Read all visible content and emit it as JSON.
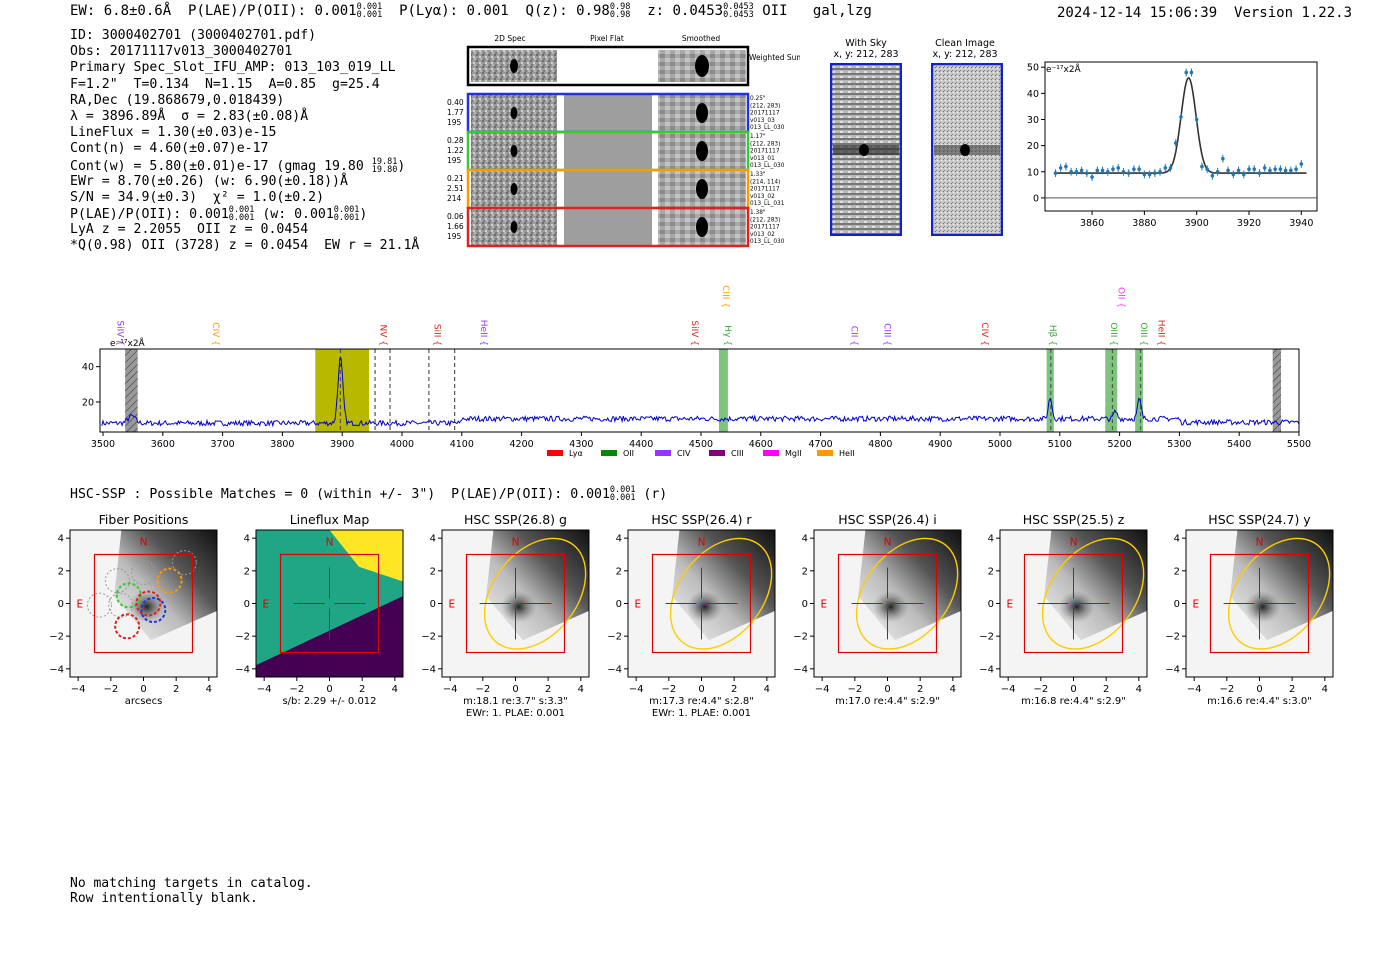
{
  "header": {
    "ew": "EW: 6.8±0.6Å",
    "plae_label": "P(LAE)/P(OII):",
    "plae_val": "0.001",
    "plae_hi": "0.001",
    "plae_lo": "0.001",
    "plya_label": "P(Lyα):",
    "plya_val": "0.001",
    "qz_label": "Q(z):",
    "qz_val": "0.98",
    "qz_hi": "0.98",
    "qz_lo": "0.98",
    "z_label": "z:",
    "z_val": "0.0453",
    "z_hi": "0.0453",
    "z_lo": "0.0453",
    "z_line": "OII",
    "flags": "gal,lzg",
    "timestamp": "2024-12-14 15:06:39",
    "version": "Version 1.22.3"
  },
  "info": {
    "id": "ID: 3000402701 (3000402701.pdf)",
    "obs": "Obs: 20171117v013_3000402701",
    "slot": "Primary Spec_Slot_IFU_AMP: 013_103_019_LL",
    "fit": "F=1.2\"  T=0.134  N=1.15  A=0.85  g=25.4",
    "radec": "RA,Dec (19.868679,0.018439)",
    "lambda": "λ = 3896.89Å  σ = 2.83(±0.08)Å",
    "lineflux": "LineFlux = 1.30(±0.03)e-15",
    "contn": "Cont(n) = 4.60(±0.07)e-17",
    "contw_a": "Cont(w) = 5.80(±0.01)e-17 (gmag 19.80",
    "contw_hi": "19.81",
    "contw_lo": "19.80",
    "contw_b": ")",
    "ewr": "EWr = 8.70(±0.26) (w: 6.90(±0.18))Å",
    "sn": "S/N = 34.9(±0.3)  χ² = 1.0(±0.2)",
    "plae_a": "P(LAE)/P(OII): 0.001",
    "plae_hi": "0.001",
    "plae_lo": "0.001",
    "plae_b": " (w: 0.001",
    "plae_w_hi": "0.001",
    "plae_w_lo": "0.001",
    "plae_c": ")",
    "lya": "LyA z = 2.2055  OII z = 0.0454",
    "q": "*Q(0.98) OII (3728) z = 0.0454  EW r = 21.1Å"
  },
  "cutouts": {
    "col_headers": [
      "2D Spec",
      "Pixel Flat",
      "Smoothed"
    ],
    "weighted_label": "Weighted Sum",
    "rows": [
      {
        "left": [
          "0.40",
          "1.77",
          "195"
        ],
        "right": [
          "0.25\"",
          "(212, 283)",
          "20171117",
          "v013_03",
          "013_LL_030"
        ],
        "color": "#2233dd"
      },
      {
        "left": [
          "0.28",
          "1.22",
          "195"
        ],
        "right": [
          "1.17\"",
          "(212, 283)",
          "20171117",
          "v013_01",
          "013_LL_030"
        ],
        "color": "#33cc33"
      },
      {
        "left": [
          "0.21",
          "2.51",
          "214"
        ],
        "right": [
          "1.33\"",
          "(214, 114)",
          "20171117",
          "v013_02",
          "013_LL_031"
        ],
        "color": "#ff9900"
      },
      {
        "left": [
          "0.06",
          "1.66",
          "195"
        ],
        "right": [
          "1.38\"",
          "(212, 283)",
          "20171117",
          "v013_02",
          "013_LL_030"
        ],
        "color": "#dd2222"
      }
    ]
  },
  "sky": {
    "with_sky_title": "With Sky",
    "with_sky_coords": "x, y: 212, 283",
    "clean_title": "Clean Image",
    "clean_coords": "x, y: 212, 283"
  },
  "chart_data": [
    {
      "type": "scatter",
      "name": "line-fit",
      "ylabel": "e⁻¹⁷x2Å",
      "xlim": [
        3842,
        3946
      ],
      "ylim": [
        -5,
        52
      ],
      "xticks": [
        3860,
        3880,
        3900,
        3920,
        3940
      ],
      "yticks": [
        0,
        10,
        20,
        30,
        40,
        50
      ],
      "points": {
        "x": [
          3846,
          3848,
          3850,
          3852,
          3854,
          3856,
          3858,
          3860,
          3862,
          3864,
          3866,
          3868,
          3870,
          3872,
          3874,
          3876,
          3878,
          3880,
          3882,
          3884,
          3886,
          3888,
          3890,
          3892,
          3894,
          3896,
          3898,
          3900,
          3902,
          3904,
          3906,
          3908,
          3910,
          3912,
          3914,
          3916,
          3918,
          3920,
          3922,
          3924,
          3926,
          3928,
          3930,
          3932,
          3934,
          3936,
          3938,
          3940
        ],
        "y": [
          9.5,
          11.5,
          12,
          10,
          10,
          10.5,
          9.5,
          8,
          10.5,
          10.5,
          10,
          11,
          11.5,
          10,
          9.5,
          11,
          11,
          9,
          9,
          9.5,
          10,
          11.5,
          11.5,
          21,
          31,
          48,
          48,
          30,
          12,
          11,
          8.5,
          10,
          15,
          10.5,
          9,
          10.5,
          9,
          11,
          11,
          9.5,
          11.5,
          10.5,
          11,
          11,
          10.5,
          10.5,
          11,
          13
        ]
      },
      "fit": {
        "center": 3896.89,
        "sigma": 2.83,
        "continuum": 9.5,
        "amplitude": 36.5
      }
    },
    {
      "type": "line",
      "name": "full-spectrum",
      "ylabel": "e⁻¹⁷x2Å",
      "xlim": [
        3495,
        5500
      ],
      "ylim": [
        3,
        50
      ],
      "xticks": [
        3500,
        3600,
        3700,
        3800,
        3900,
        4000,
        4100,
        4200,
        4300,
        4400,
        4500,
        4600,
        4700,
        4800,
        4900,
        5000,
        5100,
        5200,
        5300,
        5400,
        5500
      ],
      "yticks": [
        20,
        40
      ],
      "series": [
        {
          "name": "flux",
          "color": "#0000cc",
          "baseline": 8,
          "peaks": [
            [
              3897,
              37,
              4
            ],
            [
              5084,
              12,
              3
            ],
            [
              5233,
              11,
              3
            ],
            [
              5193,
              4,
              3
            ],
            [
              3548,
              4,
              6
            ]
          ]
        }
      ],
      "highlight": [
        3855,
        3945
      ],
      "dashed_lines": [
        3897,
        3955,
        3980,
        4045,
        4088,
        5085,
        5188,
        5235
      ],
      "green_bands": [
        [
          4530,
          4545
        ],
        [
          5078,
          5090
        ],
        [
          5176,
          5196
        ],
        [
          5226,
          5239
        ]
      ],
      "hatched": [
        [
          3537,
          3558
        ],
        [
          5456,
          5470
        ]
      ],
      "line_labels": [
        {
          "text": "SiIV",
          "x": 3524,
          "color": "#9933ff",
          "row": 1
        },
        {
          "text": "CIV",
          "x": 3684,
          "color": "#ff9900",
          "row": 1
        },
        {
          "text": "NV",
          "x": 3964,
          "color": "#dd2222",
          "row": 1
        },
        {
          "text": "SiII",
          "x": 4054,
          "color": "#dd2222",
          "row": 1
        },
        {
          "text": "HeII",
          "x": 4132,
          "color": "#9933ff",
          "row": 1
        },
        {
          "text": "CIII",
          "x": 4537,
          "color": "#ff9900",
          "row": 0
        },
        {
          "text": "SiIV",
          "x": 4485,
          "color": "#dd2222",
          "row": 1
        },
        {
          "text": "Hγ",
          "x": 4540,
          "color": "#33aa33",
          "row": 1
        },
        {
          "text": "CII",
          "x": 4752,
          "color": "#9933ff",
          "row": 1
        },
        {
          "text": "CIII",
          "x": 4807,
          "color": "#9933ff",
          "row": 1
        },
        {
          "text": "CIV",
          "x": 4970,
          "color": "#dd2222",
          "row": 1
        },
        {
          "text": "OII",
          "x": 5198,
          "color": "#ff33ff",
          "row": 0
        },
        {
          "text": "Hβ",
          "x": 5084,
          "color": "#33aa33",
          "row": 1
        },
        {
          "text": "OIII",
          "x": 5186,
          "color": "#33aa33",
          "row": 1
        },
        {
          "text": "OIII",
          "x": 5236,
          "color": "#33aa33",
          "row": 1
        },
        {
          "text": "HeII",
          "x": 5265,
          "color": "#dd2222",
          "row": 1
        }
      ],
      "legend": [
        {
          "label": "Lyα",
          "color": "#ff0000"
        },
        {
          "label": "OII",
          "color": "#008800"
        },
        {
          "label": "CIV",
          "color": "#9933ff"
        },
        {
          "label": "CIII",
          "color": "#800080"
        },
        {
          "label": "MgII",
          "color": "#ff00ff"
        },
        {
          "label": "HeII",
          "color": "#ff9900"
        }
      ]
    }
  ],
  "hsc": {
    "head_a": "HSC-SSP : Possible Matches = 0 (within +/- 3\")  P(LAE)/P(OII): 0.001",
    "head_hi": "0.001",
    "head_lo": "0.001",
    "head_b": " (r)",
    "ticks": [
      "−4",
      "−2",
      "0",
      "2",
      "4"
    ],
    "north": "N",
    "east": "E",
    "panels": [
      {
        "title": "Fiber Positions",
        "sub": [
          "arcsecs"
        ],
        "kind": "fibers"
      },
      {
        "title": "Lineflux Map",
        "sub": [
          "s/b: 2.29 +/- 0.012"
        ],
        "kind": "lineflux"
      },
      {
        "title": "HSC SSP(26.8) g",
        "sub": [
          "m:18.1  re:3.7\"  s:3.3\"",
          "EWr: 1. PLAE: 0.001"
        ],
        "kind": "hsc"
      },
      {
        "title": "HSC SSP(26.4) r",
        "sub": [
          "m:17.3  re:4.4\"  s:2.8\"",
          "EWr: 1. PLAE: 0.001"
        ],
        "kind": "hsc"
      },
      {
        "title": "HSC SSP(26.4) i",
        "sub": [
          "m:17.0  re:4.4\"  s:2.9\""
        ],
        "kind": "hsc"
      },
      {
        "title": "HSC SSP(25.5) z",
        "sub": [
          "m:16.8  re:4.4\"  s:2.9\""
        ],
        "kind": "hsc"
      },
      {
        "title": "HSC SSP(24.7) y",
        "sub": [
          "m:16.6  re:4.4\"  s:3.0\""
        ],
        "kind": "hsc"
      }
    ]
  },
  "footer": {
    "line1": "No matching targets in catalog.",
    "line2": "Row intentionally blank."
  }
}
